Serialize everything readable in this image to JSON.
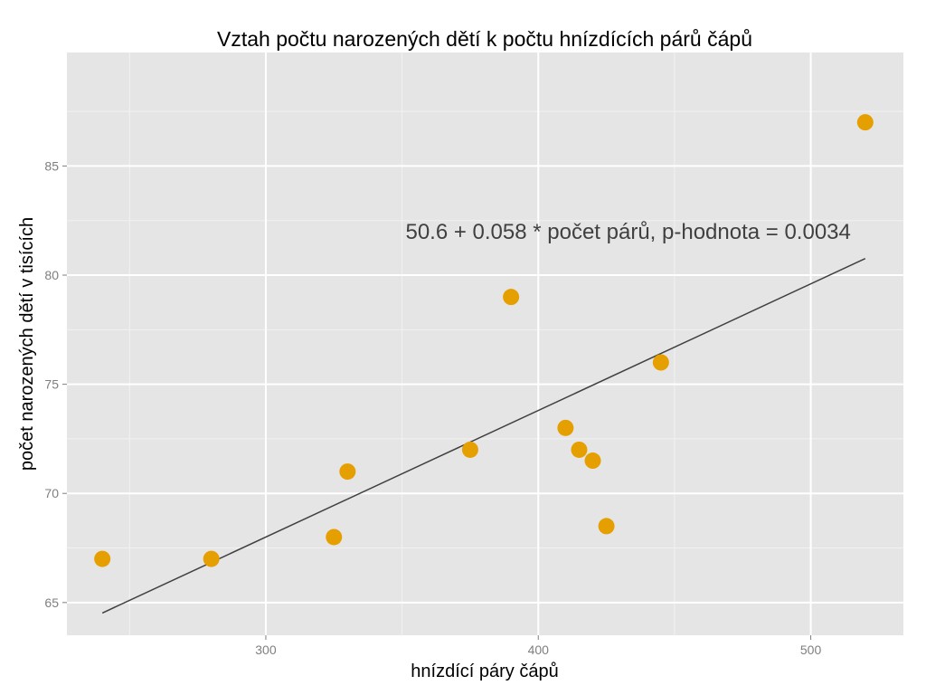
{
  "chart_data": {
    "type": "scatter",
    "title": "Vztah počtu narozených dětí k počtu hnízdících párů čápů",
    "xlabel": "hnízdící páry čápů",
    "ylabel": "počet narozených dětí v tisících",
    "xlim": [
      227,
      534
    ],
    "ylim": [
      63.5,
      90.2
    ],
    "x_ticks": [
      300,
      400,
      500
    ],
    "x_minor_ticks": [
      250,
      350,
      450
    ],
    "y_ticks": [
      65,
      70,
      75,
      80,
      85
    ],
    "y_minor_ticks": [
      67.5,
      72.5,
      77.5,
      82.5,
      87.5
    ],
    "grid": true,
    "points": [
      {
        "x": 240,
        "y": 67
      },
      {
        "x": 280,
        "y": 67
      },
      {
        "x": 325,
        "y": 68
      },
      {
        "x": 330,
        "y": 71
      },
      {
        "x": 375,
        "y": 72
      },
      {
        "x": 390,
        "y": 79
      },
      {
        "x": 410,
        "y": 73
      },
      {
        "x": 415,
        "y": 72
      },
      {
        "x": 420,
        "y": 71.5
      },
      {
        "x": 425,
        "y": 68.5
      },
      {
        "x": 445,
        "y": 76
      },
      {
        "x": 520,
        "y": 87
      }
    ],
    "trendline": {
      "intercept": 50.6,
      "slope": 0.058,
      "x_range": [
        240,
        520
      ]
    },
    "annotation": {
      "text": "50.6 + 0.058 * počet párů, p-hodnota = 0.0034",
      "x": 433,
      "y": 82
    },
    "colors": {
      "point": "#E69F00",
      "line": "#404040",
      "panel": "#E5E5E5",
      "grid_major": "#FFFFFF",
      "grid_minor": "#F2F2F2"
    }
  }
}
